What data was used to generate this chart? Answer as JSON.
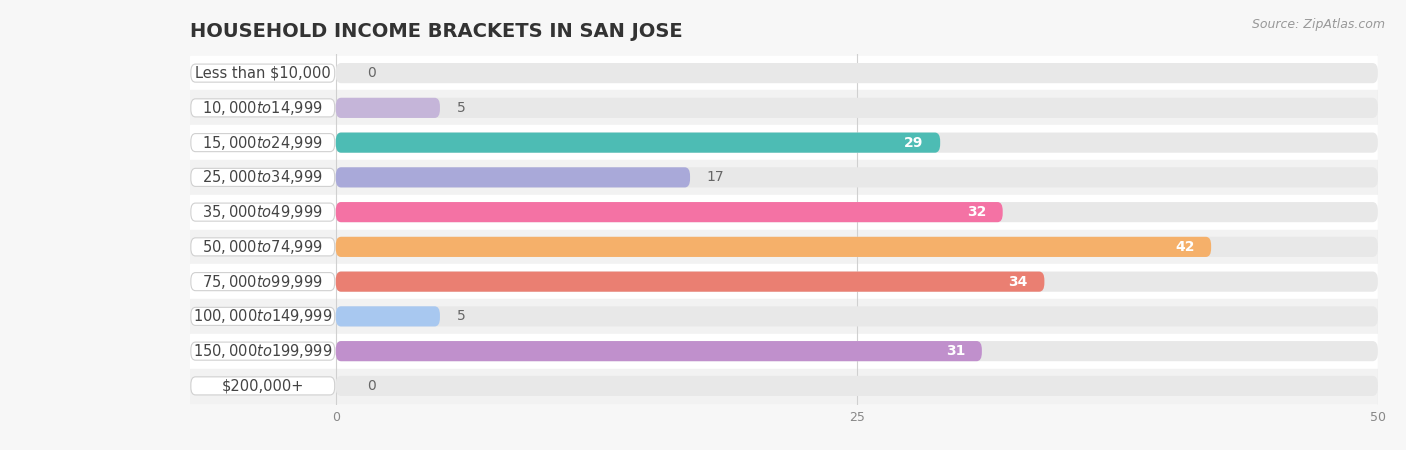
{
  "title": "HOUSEHOLD INCOME BRACKETS IN SAN JOSE",
  "source": "Source: ZipAtlas.com",
  "categories": [
    "Less than $10,000",
    "$10,000 to $14,999",
    "$15,000 to $24,999",
    "$25,000 to $34,999",
    "$35,000 to $49,999",
    "$50,000 to $74,999",
    "$75,000 to $99,999",
    "$100,000 to $149,999",
    "$150,000 to $199,999",
    "$200,000+"
  ],
  "values": [
    0,
    5,
    29,
    17,
    32,
    42,
    34,
    5,
    31,
    0
  ],
  "bar_colors": [
    "#a8d4eb",
    "#c5b5d9",
    "#4dbcb4",
    "#a9a9d9",
    "#f472a4",
    "#f5b06a",
    "#ea7f72",
    "#a8c8f0",
    "#c090cc",
    "#7bcdd8"
  ],
  "xlim_min": -7,
  "xlim_max": 50,
  "xticks": [
    0,
    25,
    50
  ],
  "bg_color": "#f7f7f7",
  "row_colors": [
    "#ffffff",
    "#f2f2f2"
  ],
  "bar_bg_color": "#e8e8e8",
  "title_fontsize": 14,
  "label_fontsize": 10.5,
  "value_fontsize": 10,
  "source_fontsize": 9
}
